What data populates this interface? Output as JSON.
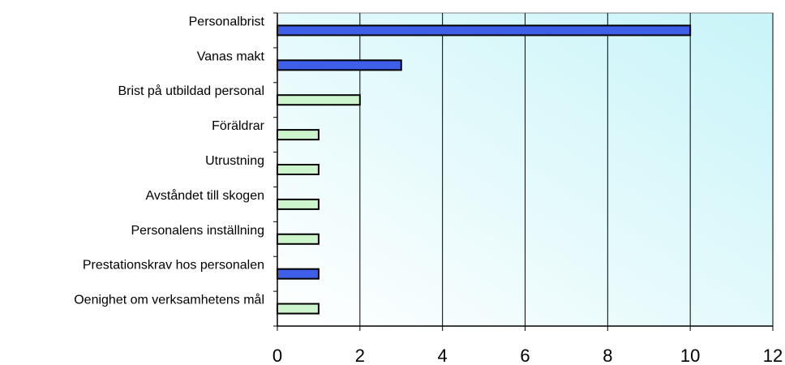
{
  "chart_data": {
    "type": "bar",
    "orientation": "horizontal",
    "categories": [
      "Personalbrist",
      "Vanas makt",
      "Brist på utbildad personal",
      "Föräldrar",
      "Utrustning",
      "Avståndet till skogen",
      "Personalens inställning",
      "Prestationskrav hos personalen",
      "Oenighet om verksamhetens mål"
    ],
    "values": [
      10,
      3,
      2,
      1,
      1,
      1,
      1,
      1,
      1
    ],
    "bar_colors": [
      "#3f5fe8",
      "#3f5fe8",
      "#ccf5cc",
      "#ccf5cc",
      "#ccf5cc",
      "#ccf5cc",
      "#ccf5cc",
      "#3f5fe8",
      "#ccf5cc"
    ],
    "xlim": [
      0,
      12
    ],
    "xticks": [
      0,
      2,
      4,
      6,
      8,
      10,
      12
    ],
    "xtick_labels": [
      "0",
      "2",
      "4",
      "6",
      "8",
      "10",
      "12"
    ],
    "grid": "vertical",
    "title": "",
    "xlabel": "",
    "ylabel": "",
    "background": [
      "#ffffff",
      "#c8f4f8"
    ]
  }
}
